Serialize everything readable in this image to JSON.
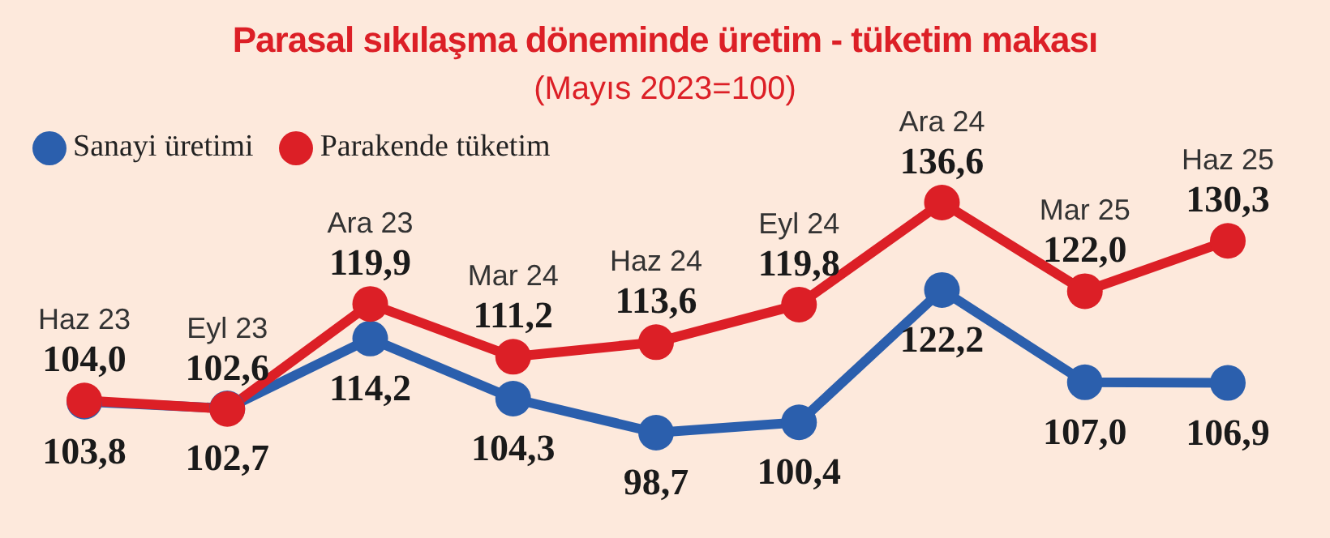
{
  "chart_data": {
    "type": "line",
    "title": "Parasal sıkılaşma döneminde üretim - tüketim makası",
    "subtitle": "(Mayıs 2023=100)",
    "categories": [
      "Haz 23",
      "Eyl 23",
      "Ara 23",
      "Mar 24",
      "Haz 24",
      "Eyl 24",
      "Ara 24",
      "Mar 25",
      "Haz 25"
    ],
    "series": [
      {
        "name": "Sanayi üretimi",
        "color": "#2b5fad",
        "values": [
          103.8,
          102.7,
          114.2,
          104.3,
          98.7,
          100.4,
          122.2,
          107.0,
          106.9
        ],
        "value_labels": [
          "103,8",
          "102,7",
          "114,2",
          "104,3",
          "98,7",
          "100,4",
          "122,2",
          "107,0",
          "106,9"
        ]
      },
      {
        "name": "Parakende tüketim",
        "color": "#dc1f26",
        "values": [
          104.0,
          102.6,
          119.9,
          111.2,
          113.6,
          119.8,
          136.6,
          122.0,
          130.3
        ],
        "value_labels": [
          "104,0",
          "102,6",
          "119,9",
          "111,2",
          "113,6",
          "119,8",
          "136,6",
          "122,0",
          "130,3"
        ]
      }
    ],
    "legend": "top left",
    "marker": "circle",
    "line_style": "solid"
  }
}
